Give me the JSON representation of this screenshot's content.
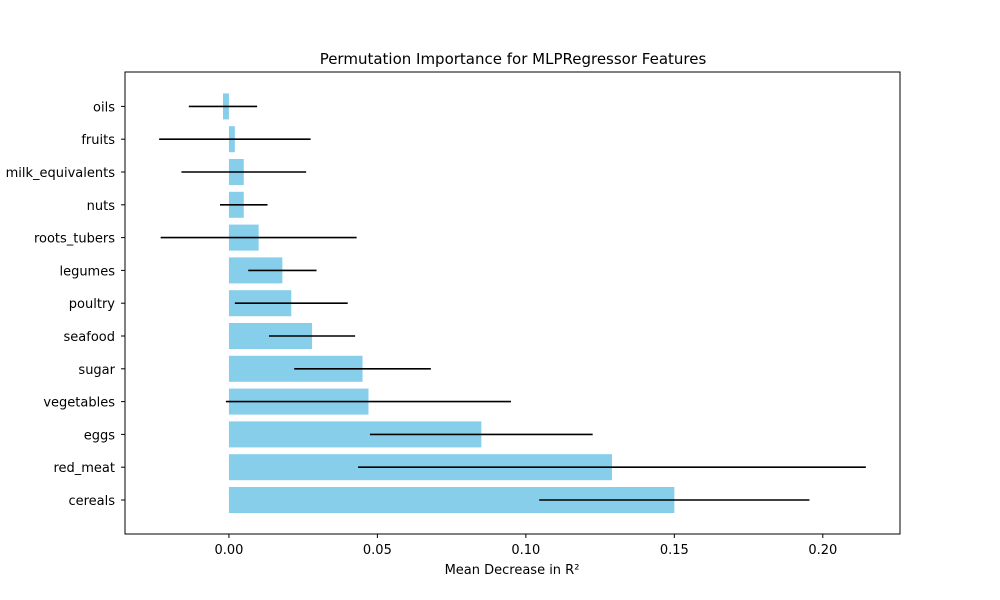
{
  "chart_data": {
    "type": "bar",
    "orientation": "horizontal",
    "title": "Permutation Importance for MLPRegressor Features",
    "xlabel": "Mean Decrease in R²",
    "ylabel": "",
    "xlim": [
      -0.035,
      0.226
    ],
    "xticks": [
      0.0,
      0.05,
      0.1,
      0.15,
      0.2
    ],
    "xtick_labels": [
      "0.00",
      "0.05",
      "0.10",
      "0.15",
      "0.20"
    ],
    "grid": false,
    "bar_color": "#87CEEB",
    "error_bar_color": "#000000",
    "categories": [
      "cereals",
      "red_meat",
      "eggs",
      "vegetables",
      "sugar",
      "seafood",
      "poultry",
      "legumes",
      "roots_tubers",
      "nuts",
      "milk_equivalents",
      "fruits",
      "oils"
    ],
    "values": [
      0.15,
      0.129,
      0.085,
      0.047,
      0.045,
      0.028,
      0.021,
      0.018,
      0.01,
      0.005,
      0.005,
      0.002,
      -0.002
    ],
    "errors": [
      0.0455,
      0.0855,
      0.0375,
      0.048,
      0.023,
      0.0145,
      0.019,
      0.0115,
      0.033,
      0.008,
      0.021,
      0.0255,
      0.0115
    ]
  }
}
